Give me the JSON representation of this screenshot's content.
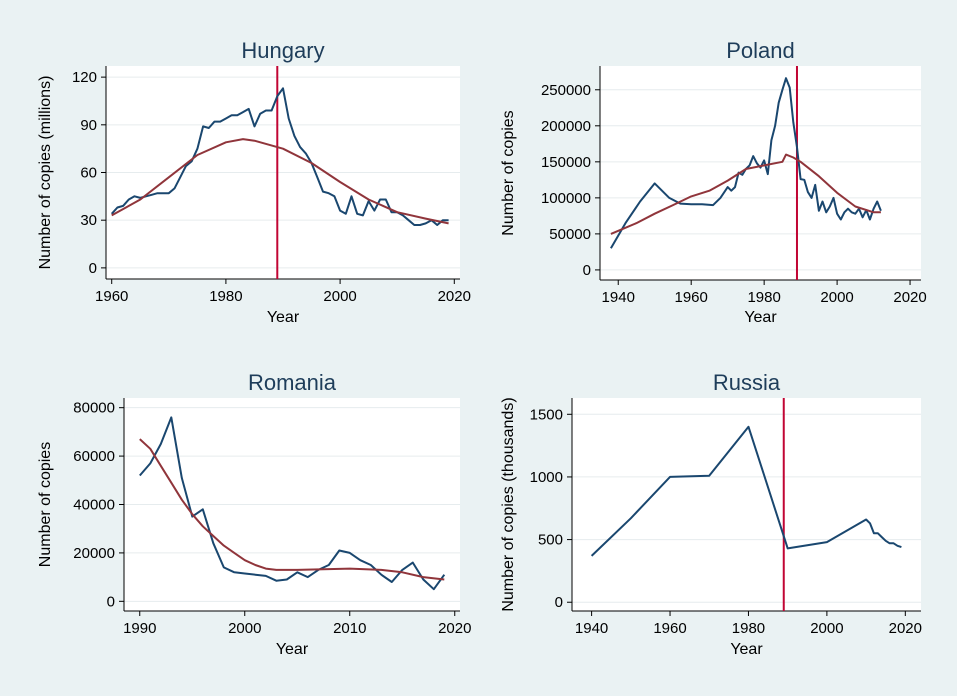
{
  "colors": {
    "background": "#eaf2f3",
    "plot_background": "#ffffff",
    "series": "#1a476f",
    "fit": "#90353b",
    "reference": "#c10534",
    "title": "#1e3d5a"
  },
  "chart_data": [
    {
      "type": "line",
      "title": "Hungary",
      "xlabel": "Year",
      "ylabel": "Number of copies (millions)",
      "xlim": [
        1959,
        2021
      ],
      "ylim": [
        -7,
        127
      ],
      "xticks": [
        1960,
        1980,
        2000,
        2020
      ],
      "yticks": [
        0,
        30,
        60,
        90,
        120
      ],
      "grid": true,
      "vline": 1989,
      "series": [
        {
          "role": "data",
          "points": [
            [
              1960,
              34
            ],
            [
              1961,
              38
            ],
            [
              1962,
              39
            ],
            [
              1963,
              43
            ],
            [
              1964,
              45
            ],
            [
              1965,
              44
            ],
            [
              1966,
              45
            ],
            [
              1967,
              46
            ],
            [
              1968,
              47
            ],
            [
              1969,
              47
            ],
            [
              1970,
              47
            ],
            [
              1971,
              50
            ],
            [
              1972,
              57
            ],
            [
              1973,
              64
            ],
            [
              1974,
              67
            ],
            [
              1975,
              75
            ],
            [
              1976,
              89
            ],
            [
              1977,
              88
            ],
            [
              1978,
              92
            ],
            [
              1979,
              92
            ],
            [
              1980,
              94
            ],
            [
              1981,
              96
            ],
            [
              1982,
              96
            ],
            [
              1983,
              98
            ],
            [
              1984,
              100
            ],
            [
              1985,
              89
            ],
            [
              1986,
              97
            ],
            [
              1987,
              99
            ],
            [
              1988,
              99
            ],
            [
              1989,
              108
            ],
            [
              1990,
              113
            ],
            [
              1991,
              94
            ],
            [
              1992,
              83
            ],
            [
              1993,
              76
            ],
            [
              1994,
              72
            ],
            [
              1995,
              66
            ],
            [
              1996,
              57
            ],
            [
              1997,
              48
            ],
            [
              1998,
              47
            ],
            [
              1999,
              45
            ],
            [
              2000,
              36
            ],
            [
              2001,
              34
            ],
            [
              2002,
              45
            ],
            [
              2003,
              34
            ],
            [
              2004,
              33
            ],
            [
              2005,
              42
            ],
            [
              2006,
              36
            ],
            [
              2007,
              43
            ],
            [
              2008,
              43
            ],
            [
              2009,
              35
            ],
            [
              2010,
              35
            ],
            [
              2011,
              33
            ],
            [
              2012,
              30
            ],
            [
              2013,
              27
            ],
            [
              2014,
              27
            ],
            [
              2015,
              28
            ],
            [
              2016,
              30
            ],
            [
              2017,
              27
            ],
            [
              2018,
              30
            ],
            [
              2019,
              30
            ]
          ]
        },
        {
          "role": "fit",
          "points": [
            [
              1960,
              33
            ],
            [
              1965,
              43
            ],
            [
              1970,
              57
            ],
            [
              1975,
              71
            ],
            [
              1980,
              79
            ],
            [
              1983,
              81
            ],
            [
              1985,
              80
            ],
            [
              1990,
              75
            ],
            [
              1995,
              66
            ],
            [
              2000,
              54
            ],
            [
              2005,
              43
            ],
            [
              2010,
              35
            ],
            [
              2015,
              31
            ],
            [
              2019,
              28
            ]
          ]
        }
      ]
    },
    {
      "type": "line",
      "title": "Poland",
      "xlabel": "Year",
      "ylabel": "Number of copies",
      "xlim": [
        1935,
        2023
      ],
      "ylim": [
        -14000,
        283000
      ],
      "xticks": [
        1940,
        1960,
        1980,
        2000,
        2020
      ],
      "yticks": [
        0,
        50000,
        100000,
        150000,
        200000,
        250000
      ],
      "grid": true,
      "vline": 1989,
      "series": [
        {
          "role": "data",
          "points": [
            [
              1938,
              30000
            ],
            [
              1942,
              65000
            ],
            [
              1946,
              95000
            ],
            [
              1950,
              120000
            ],
            [
              1954,
              100000
            ],
            [
              1957,
              92000
            ],
            [
              1960,
              91000
            ],
            [
              1963,
              91000
            ],
            [
              1966,
              90000
            ],
            [
              1968,
              100000
            ],
            [
              1970,
              115000
            ],
            [
              1971,
              110000
            ],
            [
              1972,
              115000
            ],
            [
              1973,
              135000
            ],
            [
              1974,
              132000
            ],
            [
              1975,
              140000
            ],
            [
              1976,
              145000
            ],
            [
              1977,
              158000
            ],
            [
              1978,
              148000
            ],
            [
              1979,
              142000
            ],
            [
              1980,
              152000
            ],
            [
              1981,
              133000
            ],
            [
              1982,
              180000
            ],
            [
              1983,
              200000
            ],
            [
              1984,
              232000
            ],
            [
              1985,
              250000
            ],
            [
              1986,
              266000
            ],
            [
              1987,
              253000
            ],
            [
              1988,
              205000
            ],
            [
              1989,
              170000
            ],
            [
              1990,
              126000
            ],
            [
              1991,
              125000
            ],
            [
              1992,
              108000
            ],
            [
              1993,
              100000
            ],
            [
              1994,
              118000
            ],
            [
              1995,
              82000
            ],
            [
              1996,
              95000
            ],
            [
              1997,
              80000
            ],
            [
              1998,
              88000
            ],
            [
              1999,
              100000
            ],
            [
              2000,
              78000
            ],
            [
              2001,
              70000
            ],
            [
              2002,
              80000
            ],
            [
              2003,
              85000
            ],
            [
              2004,
              80000
            ],
            [
              2005,
              78000
            ],
            [
              2006,
              85000
            ],
            [
              2007,
              73000
            ],
            [
              2008,
              83000
            ],
            [
              2009,
              70000
            ],
            [
              2010,
              85000
            ],
            [
              2011,
              95000
            ],
            [
              2012,
              82000
            ]
          ]
        },
        {
          "role": "fit",
          "points": [
            [
              1938,
              50000
            ],
            [
              1945,
              65000
            ],
            [
              1950,
              78000
            ],
            [
              1955,
              90000
            ],
            [
              1960,
              102000
            ],
            [
              1965,
              110000
            ],
            [
              1970,
              124000
            ],
            [
              1975,
              140000
            ],
            [
              1980,
              145000
            ],
            [
              1985,
              150000
            ],
            [
              1986,
              160000
            ],
            [
              1988,
              156000
            ],
            [
              1990,
              150000
            ],
            [
              1995,
              130000
            ],
            [
              2000,
              107000
            ],
            [
              2005,
              88000
            ],
            [
              2010,
              80000
            ],
            [
              2012,
              80000
            ]
          ]
        }
      ]
    },
    {
      "type": "line",
      "title": "Romania",
      "xlabel": "Year",
      "ylabel": "Number of copies",
      "xlim": [
        1988.5,
        2020.5
      ],
      "ylim": [
        -4000,
        84000
      ],
      "xticks": [
        1990,
        2000,
        2010,
        2020
      ],
      "yticks": [
        0,
        20000,
        40000,
        60000,
        80000
      ],
      "grid": true,
      "series": [
        {
          "role": "data",
          "points": [
            [
              1990,
              52000
            ],
            [
              1991,
              57000
            ],
            [
              1992,
              65000
            ],
            [
              1993,
              76000
            ],
            [
              1994,
              51000
            ],
            [
              1995,
              35000
            ],
            [
              1996,
              38000
            ],
            [
              1997,
              24000
            ],
            [
              1998,
              14000
            ],
            [
              1999,
              12000
            ],
            [
              2000,
              11500
            ],
            [
              2001,
              11000
            ],
            [
              2002,
              10500
            ],
            [
              2003,
              8500
            ],
            [
              2004,
              9000
            ],
            [
              2005,
              12000
            ],
            [
              2006,
              10000
            ],
            [
              2007,
              13000
            ],
            [
              2008,
              15000
            ],
            [
              2009,
              21000
            ],
            [
              2010,
              20000
            ],
            [
              2011,
              17000
            ],
            [
              2012,
              15000
            ],
            [
              2013,
              11000
            ],
            [
              2014,
              8000
            ],
            [
              2015,
              13000
            ],
            [
              2016,
              16000
            ],
            [
              2017,
              9000
            ],
            [
              2018,
              5000
            ],
            [
              2019,
              11000
            ]
          ]
        },
        {
          "role": "fit",
          "points": [
            [
              1990,
              67000
            ],
            [
              1991,
              63000
            ],
            [
              1992,
              56000
            ],
            [
              1993,
              49000
            ],
            [
              1994,
              42000
            ],
            [
              1995,
              36000
            ],
            [
              1996,
              31000
            ],
            [
              1997,
              27000
            ],
            [
              1998,
              23000
            ],
            [
              1999,
              20000
            ],
            [
              2000,
              17000
            ],
            [
              2001,
              15000
            ],
            [
              2002,
              13500
            ],
            [
              2003,
              13000
            ],
            [
              2005,
              13000
            ],
            [
              2010,
              13500
            ],
            [
              2013,
              13000
            ],
            [
              2015,
              12000
            ],
            [
              2017,
              10000
            ],
            [
              2019,
              9000
            ]
          ]
        }
      ]
    },
    {
      "type": "line",
      "title": "Russia",
      "xlabel": "Year",
      "ylabel": "Number of copies (thousands)",
      "xlim": [
        1935,
        2024
      ],
      "ylim": [
        -70,
        1630
      ],
      "xticks": [
        1940,
        1960,
        1980,
        2000,
        2020
      ],
      "yticks": [
        0,
        500,
        1000,
        1500
      ],
      "grid": true,
      "vline": 1989,
      "series": [
        {
          "role": "data",
          "points": [
            [
              1940,
              370
            ],
            [
              1950,
              670
            ],
            [
              1960,
              1000
            ],
            [
              1970,
              1010
            ],
            [
              1980,
              1400
            ],
            [
              1990,
              430
            ],
            [
              2000,
              480
            ],
            [
              2010,
              660
            ],
            [
              2011,
              630
            ],
            [
              2012,
              550
            ],
            [
              2013,
              550
            ],
            [
              2014,
              520
            ],
            [
              2015,
              490
            ],
            [
              2016,
              470
            ],
            [
              2017,
              470
            ],
            [
              2018,
              450
            ],
            [
              2019,
              440
            ]
          ]
        }
      ]
    }
  ]
}
